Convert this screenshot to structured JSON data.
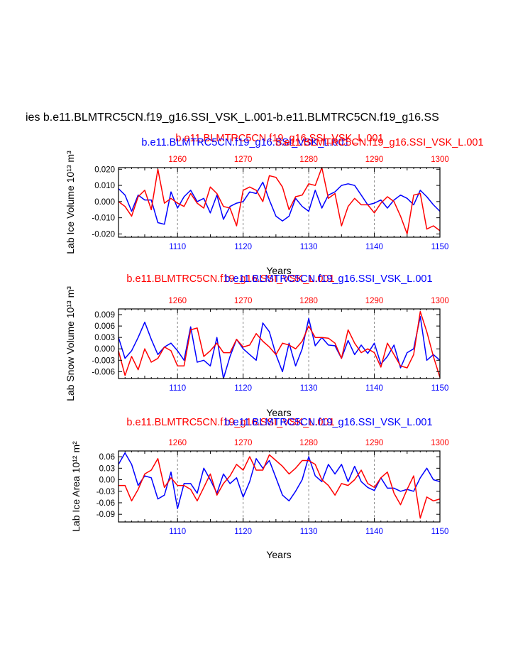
{
  "figure": {
    "main_title": "ies b.e11.BLMTRC5CN.f19_g16.SSI_VSK_L.001-b.e11.BLMTRC5CN.f19_g16.SS",
    "colors": {
      "series_a": "#0000ff",
      "series_b": "#ff0000",
      "axis": "#000000",
      "grid": "#888888"
    }
  },
  "chart_data": [
    {
      "type": "line",
      "title_a": "b.e11.BLMTRC5CN.f19_g16.SSI_VSK_L.001",
      "title_b": "b.e11.BLMTRC5CN.f19_g16.SSI_VSK_L.001",
      "ylabel": "Lab Ice Volume 10¹³ m³",
      "xlabel": "Years",
      "xlim": [
        1101,
        1150
      ],
      "x_top_lim": [
        1251,
        1300
      ],
      "ylim": [
        -0.022,
        0.021
      ],
      "xticks_bottom": [
        1110,
        1120,
        1130,
        1140,
        1150
      ],
      "xticks_top": [
        1260,
        1270,
        1280,
        1290,
        1300
      ],
      "yticks": [
        -0.02,
        -0.01,
        0.0,
        0.01,
        0.02
      ],
      "ytick_labels": [
        "-0.020",
        "-0.010",
        "0.000",
        "0.010",
        "0.020"
      ],
      "series": [
        {
          "name": "b.e11.BLMTRC5CN.f19_g16.SSI_VSK_L.001",
          "axis": "bottom",
          "color": "#0000ff",
          "values": [
            0.008,
            0.004,
            -0.006,
            0.004,
            0.001,
            0.001,
            -0.013,
            -0.014,
            0.006,
            -0.004,
            0.003,
            0.007,
            0.0,
            0.002,
            -0.007,
            0.004,
            -0.011,
            -0.003,
            -0.001,
            0.0,
            0.006,
            0.005,
            0.012,
            0.001,
            -0.009,
            -0.012,
            -0.009,
            0.002,
            -0.003,
            -0.006,
            0.007,
            -0.004,
            0.004,
            0.006,
            0.01,
            0.011,
            0.01,
            0.004,
            -0.002,
            -0.001,
            0.001,
            -0.004,
            0.001,
            0.004,
            0.002,
            -0.002,
            0.007,
            0.003,
            -0.002,
            -0.006
          ]
        },
        {
          "name": "b.e11.BLMTRC5CN.f19_g16.SSI_VSK_L.001",
          "axis": "top",
          "color": "#ff0000",
          "values": [
            0.0,
            -0.003,
            -0.009,
            0.003,
            0.007,
            -0.005,
            0.02,
            -0.001,
            0.002,
            -0.001,
            -0.003,
            0.005,
            -0.001,
            -0.004,
            0.009,
            0.005,
            -0.003,
            -0.004,
            -0.015,
            0.007,
            0.009,
            0.007,
            0.0,
            0.016,
            0.015,
            0.009,
            -0.005,
            0.003,
            0.004,
            0.011,
            0.01,
            0.021,
            0.002,
            0.005,
            -0.015,
            -0.003,
            0.002,
            -0.002,
            -0.002,
            -0.007,
            -0.001,
            0.003,
            0.0,
            -0.009,
            -0.02,
            0.004,
            0.005,
            -0.017,
            -0.015,
            -0.018
          ]
        }
      ]
    },
    {
      "type": "line",
      "title_a": "b.e11.BLMTRC5CN.f19_g16.SSI_VSK_L.001",
      "title_b": "b.e11.BLMTRC5CN.f19_g16.SSI_VSK_L.001",
      "ylabel": "Lab Snow Volume 10¹³ m³",
      "xlabel": "Years",
      "xlim": [
        1101,
        1150
      ],
      "x_top_lim": [
        1251,
        1300
      ],
      "ylim": [
        -0.0078,
        0.0105
      ],
      "xticks_bottom": [
        1110,
        1120,
        1130,
        1140,
        1150
      ],
      "xticks_top": [
        1260,
        1270,
        1280,
        1290,
        1300
      ],
      "yticks": [
        -0.006,
        -0.003,
        0.0,
        0.003,
        0.006,
        0.009
      ],
      "ytick_labels": [
        "-0.006",
        "-0.003",
        "0.000",
        "0.003",
        "0.006",
        "0.009"
      ],
      "series": [
        {
          "name": "b.e11.BLMTRC5CN.f19_g16.SSI_VSK_L.001",
          "axis": "bottom",
          "color": "#0000ff",
          "values": [
            0.003,
            -0.0025,
            -0.0005,
            0.003,
            0.007,
            0.0025,
            -0.0015,
            0.0005,
            0.0015,
            -0.0005,
            -0.003,
            0.0058,
            -0.0035,
            -0.003,
            -0.0045,
            0.003,
            -0.0078,
            -0.002,
            0.0025,
            0.0,
            -0.0015,
            -0.003,
            0.0068,
            0.0045,
            -0.0015,
            -0.006,
            0.0015,
            -0.0045,
            0.0,
            0.008,
            0.0008,
            0.003,
            0.001,
            0.0008,
            -0.0025,
            0.0022,
            -0.0015,
            0.001,
            -0.0012,
            0.0015,
            -0.004,
            -0.002,
            0.001,
            -0.005,
            -0.001,
            0.0,
            0.0085,
            -0.003,
            -0.0015,
            -0.003
          ]
        },
        {
          "name": "b.e11.BLMTRC5CN.f19_g16.SSI_VSK_L.001",
          "axis": "top",
          "color": "#ff0000",
          "values": [
            -0.0005,
            -0.007,
            -0.002,
            -0.0055,
            0.0,
            -0.0035,
            -0.0025,
            0.0005,
            -0.0005,
            -0.0045,
            -0.0045,
            0.005,
            0.0055,
            -0.002,
            -0.0005,
            0.0015,
            -0.001,
            -0.001,
            0.0025,
            0.0005,
            0.001,
            0.004,
            0.002,
            0.0005,
            -0.0015,
            0.0015,
            0.001,
            0.0,
            0.002,
            0.006,
            0.003,
            0.003,
            0.0028,
            0.0015,
            -0.0025,
            0.005,
            0.0015,
            -0.001,
            0.0,
            -0.001,
            -0.0048,
            0.0015,
            -0.0015,
            -0.0045,
            -0.005,
            -0.0015,
            0.0098,
            0.0045,
            -0.002,
            -0.0075
          ]
        }
      ]
    },
    {
      "type": "line",
      "title_a": "b.e11.BLMTRC5CN.f19_g16.SSI_VSK_L.001",
      "title_b": "b.e11.BLMTRC5CN.f19_g16.SSI_VSK_L.001",
      "ylabel": "Lab Ice Area 10¹² m²",
      "xlabel": "Years",
      "xlim": [
        1101,
        1150
      ],
      "x_top_lim": [
        1251,
        1300
      ],
      "ylim": [
        -0.11,
        0.075
      ],
      "xticks_bottom": [
        1110,
        1120,
        1130,
        1140,
        1150
      ],
      "xticks_top": [
        1260,
        1270,
        1280,
        1290,
        1300
      ],
      "yticks": [
        -0.09,
        -0.06,
        -0.03,
        0.0,
        0.03,
        0.06
      ],
      "ytick_labels": [
        "-0.09",
        "-0.06",
        "-0.03",
        "0.00",
        "0.03",
        "0.06"
      ],
      "series": [
        {
          "name": "b.e11.BLMTRC5CN.f19_g16.SSI_VSK_L.001",
          "axis": "bottom",
          "color": "#0000ff",
          "values": [
            0.04,
            0.07,
            0.04,
            -0.015,
            0.01,
            0.005,
            -0.05,
            -0.04,
            0.02,
            -0.075,
            -0.01,
            -0.01,
            -0.035,
            0.03,
            0.0,
            -0.035,
            0.015,
            -0.01,
            0.005,
            -0.045,
            -0.005,
            0.055,
            0.03,
            0.05,
            0.005,
            -0.04,
            -0.055,
            -0.03,
            0.0,
            0.06,
            0.01,
            -0.005,
            0.04,
            0.015,
            0.04,
            -0.005,
            0.035,
            -0.005,
            -0.02,
            -0.028,
            0.005,
            -0.022,
            -0.022,
            -0.03,
            -0.025,
            -0.03,
            0.005,
            0.03,
            0.0,
            -0.005
          ]
        },
        {
          "name": "b.e11.BLMTRC5CN.f19_g16.SSI_VSK_L.001",
          "axis": "top",
          "color": "#ff0000",
          "values": [
            -0.015,
            -0.015,
            -0.055,
            -0.025,
            0.015,
            0.025,
            0.055,
            -0.02,
            0.005,
            -0.015,
            -0.015,
            -0.025,
            -0.055,
            -0.02,
            0.015,
            -0.04,
            -0.01,
            0.01,
            0.04,
            0.025,
            0.06,
            0.025,
            0.025,
            0.065,
            0.05,
            0.035,
            0.015,
            0.03,
            0.05,
            0.05,
            0.04,
            0.0,
            -0.015,
            -0.04,
            -0.01,
            -0.015,
            0.0,
            0.025,
            -0.01,
            -0.02,
            0.005,
            0.02,
            -0.035,
            -0.065,
            -0.025,
            0.01,
            -0.1,
            -0.045,
            -0.055,
            -0.05
          ]
        }
      ]
    }
  ]
}
